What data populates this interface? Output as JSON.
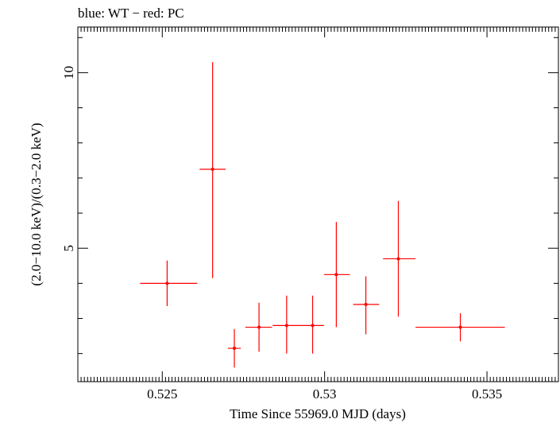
{
  "chart_data": {
    "type": "scatter",
    "title": "blue: WT − red: PC",
    "xlabel": "Time Since 55969.0 MJD (days)",
    "ylabel": "(2.0−10.0 keV)/(0.3−2.0 keV)",
    "xlim": [
      0.5224,
      0.5372
    ],
    "ylim": [
      1.2,
      11.3
    ],
    "x_ticks_major": [
      0.525,
      0.53,
      0.535
    ],
    "x_tick_labels": [
      "0.525",
      "0.53",
      "0.535"
    ],
    "y_ticks_major": [
      5,
      10
    ],
    "y_tick_labels": [
      "5",
      "10"
    ],
    "series": [
      {
        "color": "#ff0000",
        "points": [
          {
            "x": 0.52515,
            "x_lo": 0.52432,
            "x_hi": 0.52608,
            "y": 4.0,
            "y_lo": 3.35,
            "y_hi": 4.65
          },
          {
            "x": 0.52655,
            "x_lo": 0.52615,
            "x_hi": 0.52695,
            "y": 7.25,
            "y_lo": 4.15,
            "y_hi": 10.3
          },
          {
            "x": 0.52722,
            "x_lo": 0.52702,
            "x_hi": 0.52742,
            "y": 2.15,
            "y_lo": 1.6,
            "y_hi": 2.7
          },
          {
            "x": 0.52798,
            "x_lo": 0.52756,
            "x_hi": 0.52838,
            "y": 2.75,
            "y_lo": 2.05,
            "y_hi": 3.45
          },
          {
            "x": 0.52883,
            "x_lo": 0.5284,
            "x_hi": 0.5293,
            "y": 2.8,
            "y_lo": 2.0,
            "y_hi": 3.65
          },
          {
            "x": 0.52963,
            "x_lo": 0.5293,
            "x_hi": 0.52998,
            "y": 2.8,
            "y_lo": 2.0,
            "y_hi": 3.65
          },
          {
            "x": 0.53036,
            "x_lo": 0.52998,
            "x_hi": 0.53078,
            "y": 4.25,
            "y_lo": 2.75,
            "y_hi": 5.75
          },
          {
            "x": 0.53127,
            "x_lo": 0.53088,
            "x_hi": 0.53168,
            "y": 3.4,
            "y_lo": 2.55,
            "y_hi": 4.2
          },
          {
            "x": 0.53227,
            "x_lo": 0.5318,
            "x_hi": 0.5328,
            "y": 4.7,
            "y_lo": 3.05,
            "y_hi": 6.35
          },
          {
            "x": 0.53418,
            "x_lo": 0.5328,
            "x_hi": 0.53555,
            "y": 2.75,
            "y_lo": 2.35,
            "y_hi": 3.15
          }
        ]
      }
    ]
  }
}
